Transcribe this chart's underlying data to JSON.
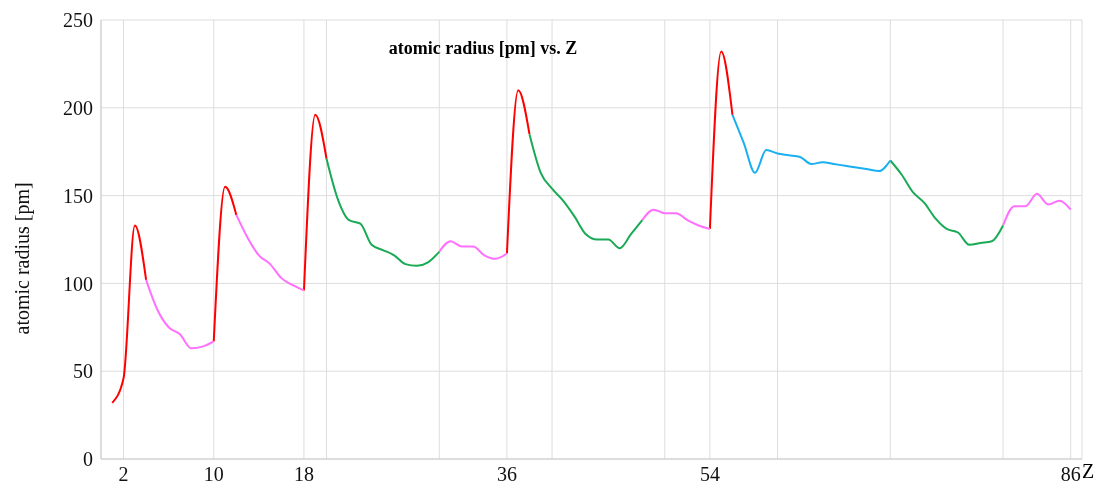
{
  "chart_data": {
    "type": "line",
    "title": "atomic radius [pm] vs. Z",
    "xlabel": "Z",
    "ylabel": "atomic radius [pm]",
    "x": [
      1,
      2,
      3,
      4,
      5,
      6,
      7,
      8,
      9,
      10,
      11,
      12,
      13,
      14,
      15,
      16,
      17,
      18,
      19,
      20,
      21,
      22,
      23,
      24,
      25,
      26,
      27,
      28,
      29,
      30,
      31,
      32,
      33,
      34,
      35,
      36,
      37,
      38,
      39,
      40,
      41,
      42,
      43,
      44,
      45,
      46,
      47,
      48,
      49,
      50,
      51,
      52,
      53,
      54,
      55,
      56,
      57,
      58,
      59,
      60,
      61,
      62,
      63,
      64,
      65,
      66,
      67,
      68,
      69,
      70,
      71,
      72,
      73,
      74,
      75,
      76,
      77,
      78,
      79,
      80,
      81,
      82,
      83,
      84,
      85,
      86
    ],
    "series": [
      {
        "color": "#ff0000",
        "values": [
          32,
          46,
          133,
          102,
          null,
          null,
          null,
          null,
          null,
          67,
          155,
          139,
          null,
          null,
          null,
          null,
          null,
          96,
          196,
          171,
          null,
          null,
          null,
          null,
          null,
          null,
          null,
          null,
          null,
          null,
          null,
          null,
          null,
          null,
          null,
          117,
          210,
          185,
          null,
          null,
          null,
          null,
          null,
          null,
          null,
          null,
          null,
          null,
          null,
          null,
          null,
          null,
          null,
          131,
          232,
          196,
          null,
          null,
          null,
          null,
          null,
          null,
          null,
          null,
          null,
          null,
          null,
          null,
          null,
          null,
          null,
          null,
          null,
          null,
          null,
          null,
          null,
          null,
          null,
          null,
          null,
          null,
          null,
          null,
          null,
          null
        ]
      },
      {
        "color": "#ff70ff",
        "values": [
          null,
          null,
          null,
          102,
          85,
          75,
          71,
          63,
          64,
          67,
          null,
          139,
          126,
          116,
          111,
          103,
          99,
          96,
          null,
          null,
          null,
          null,
          null,
          null,
          null,
          null,
          null,
          null,
          null,
          118,
          124,
          121,
          121,
          116,
          114,
          117,
          null,
          null,
          null,
          null,
          null,
          null,
          null,
          null,
          null,
          null,
          null,
          136,
          142,
          140,
          140,
          136,
          133,
          131,
          null,
          null,
          null,
          null,
          null,
          null,
          null,
          null,
          null,
          null,
          null,
          null,
          null,
          null,
          null,
          null,
          null,
          null,
          null,
          null,
          null,
          null,
          null,
          null,
          null,
          133,
          144,
          144,
          151,
          145,
          147,
          142
        ]
      },
      {
        "color": "#1aaa55",
        "values": [
          null,
          null,
          null,
          null,
          null,
          null,
          null,
          null,
          null,
          null,
          null,
          null,
          null,
          null,
          null,
          null,
          null,
          null,
          null,
          171,
          148,
          136,
          134,
          122,
          119,
          116,
          111,
          110,
          112,
          118,
          null,
          null,
          null,
          null,
          null,
          null,
          null,
          185,
          163,
          154,
          147,
          138,
          128,
          125,
          125,
          120,
          128,
          136,
          null,
          null,
          null,
          null,
          null,
          null,
          null,
          null,
          null,
          null,
          null,
          null,
          null,
          null,
          null,
          null,
          null,
          null,
          null,
          null,
          null,
          170,
          162,
          152,
          146,
          137,
          131,
          129,
          122,
          123,
          124,
          133,
          null,
          null,
          null,
          null,
          null,
          null
        ]
      },
      {
        "color": "#1ab0f0",
        "values": [
          null,
          null,
          null,
          null,
          null,
          null,
          null,
          null,
          null,
          null,
          null,
          null,
          null,
          null,
          null,
          null,
          null,
          null,
          null,
          null,
          null,
          null,
          null,
          null,
          null,
          null,
          null,
          null,
          null,
          null,
          null,
          null,
          null,
          null,
          null,
          null,
          null,
          null,
          null,
          null,
          null,
          null,
          null,
          null,
          null,
          null,
          null,
          null,
          null,
          null,
          null,
          null,
          null,
          null,
          null,
          196,
          180,
          163,
          176,
          174,
          173,
          172,
          168,
          169,
          168,
          167,
          166,
          165,
          164,
          170,
          null,
          null,
          null,
          null,
          null,
          null,
          null,
          null,
          null,
          null,
          null,
          null,
          null,
          null,
          null,
          null
        ]
      }
    ],
    "xlim": [
      0,
      87
    ],
    "xticks": [
      2,
      10,
      18,
      {
        "value": 20,
        "label": null
      },
      {
        "value": 30,
        "label": null
      },
      36,
      {
        "value": 40,
        "label": null
      },
      {
        "value": 50,
        "label": null
      },
      54,
      {
        "value": 60,
        "label": null
      },
      {
        "value": 70,
        "label": null
      },
      {
        "value": 80,
        "label": null
      },
      86
    ],
    "ylim": [
      0,
      250
    ],
    "yticks": [
      0,
      50,
      100,
      150,
      200,
      250
    ],
    "grid": true
  }
}
